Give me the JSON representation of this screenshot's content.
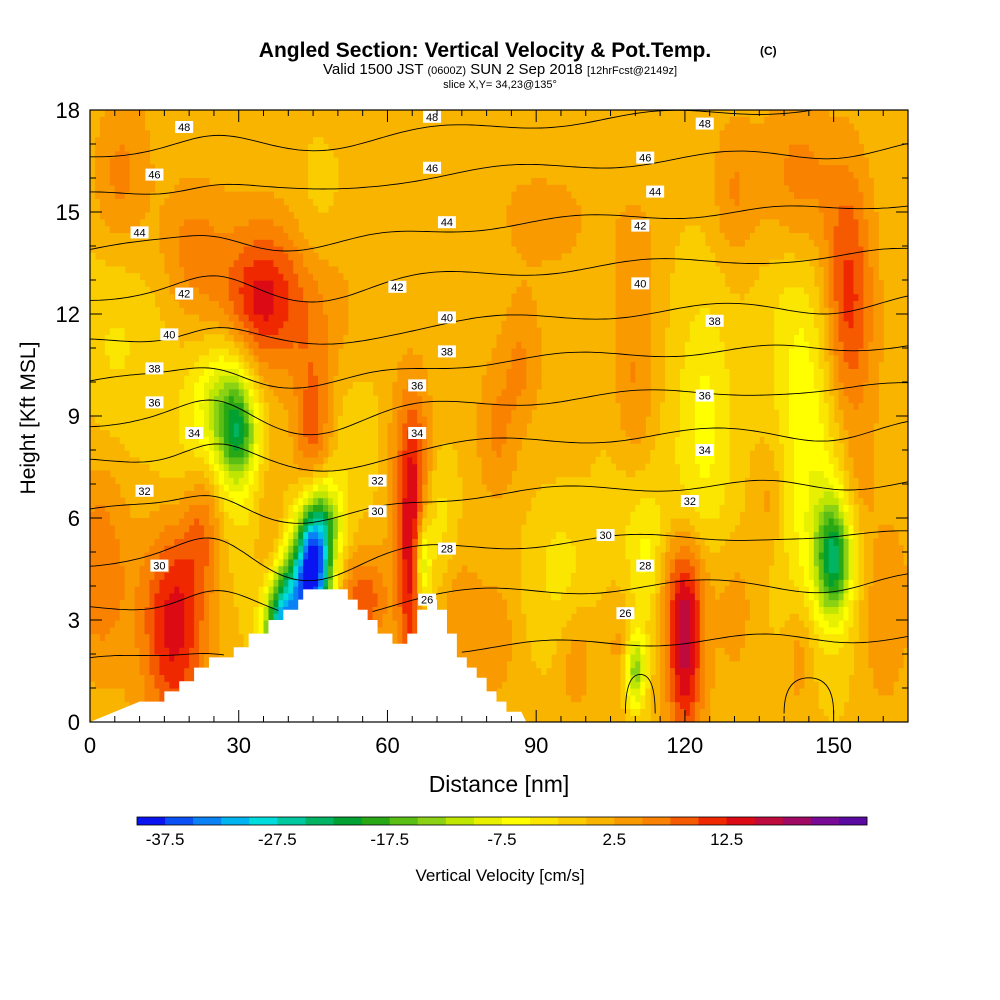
{
  "header": {
    "title_main": "Angled Section: Vertical Velocity & Pot.Temp.",
    "title_units": "(C)",
    "valid_prefix": "Valid 1500 JST",
    "valid_utc": "(0600Z)",
    "valid_date": "SUN 2 Sep 2018",
    "valid_fcst": "[12hrFcst@2149z]",
    "slice": "slice X,Y= 34,23@135°"
  },
  "colors": {
    "background": "#ffffff",
    "terrain": "#ffffff",
    "contour": "#000000",
    "base_fill": "#f9b400"
  },
  "chart_data": {
    "type": "heatmap",
    "xlabel": "Distance [nm]",
    "ylabel": "Height [Kft MSL]",
    "xlim": [
      0,
      165
    ],
    "ylim": [
      0,
      18
    ],
    "x_ticks": [
      0,
      30,
      60,
      90,
      120,
      150
    ],
    "y_ticks": [
      0,
      3,
      6,
      9,
      12,
      15,
      18
    ],
    "colorbar": {
      "label": "Vertical Velocity [cm/s]",
      "tick_labels": [
        "-37.5",
        "-27.5",
        "-17.5",
        "-7.5",
        "2.5",
        "12.5"
      ],
      "tick_values": [
        -37.5,
        -27.5,
        -17.5,
        -7.5,
        2.5,
        12.5
      ],
      "bins": [
        {
          "min": -40,
          "max": -37.5,
          "color": "#0a14f0"
        },
        {
          "min": -37.5,
          "max": -35,
          "color": "#0a50f5"
        },
        {
          "min": -35,
          "max": -32.5,
          "color": "#0a82f5"
        },
        {
          "min": -32.5,
          "max": -30,
          "color": "#00b4f0"
        },
        {
          "min": -30,
          "max": -27.5,
          "color": "#00dcdc"
        },
        {
          "min": -27.5,
          "max": -25,
          "color": "#00c8a0"
        },
        {
          "min": -25,
          "max": -22.5,
          "color": "#00b464"
        },
        {
          "min": -22.5,
          "max": -20,
          "color": "#00a032"
        },
        {
          "min": -20,
          "max": -17.5,
          "color": "#28a814"
        },
        {
          "min": -17.5,
          "max": -15,
          "color": "#5abe14"
        },
        {
          "min": -15,
          "max": -12.5,
          "color": "#8cd214"
        },
        {
          "min": -12.5,
          "max": -10,
          "color": "#bee600"
        },
        {
          "min": -10,
          "max": -7.5,
          "color": "#e6f000"
        },
        {
          "min": -7.5,
          "max": -5,
          "color": "#ffff00"
        },
        {
          "min": -5,
          "max": -2.5,
          "color": "#fae600"
        },
        {
          "min": -2.5,
          "max": 0,
          "color": "#f9cd00"
        },
        {
          "min": 0,
          "max": 2.5,
          "color": "#f9b400"
        },
        {
          "min": 2.5,
          "max": 5,
          "color": "#f99b00"
        },
        {
          "min": 5,
          "max": 7.5,
          "color": "#f98200"
        },
        {
          "min": 7.5,
          "max": 10,
          "color": "#f55a00"
        },
        {
          "min": 10,
          "max": 12.5,
          "color": "#f02800"
        },
        {
          "min": 12.5,
          "max": 15,
          "color": "#dc0a14"
        },
        {
          "min": 15,
          "max": 17.5,
          "color": "#be0a3c"
        },
        {
          "min": 17.5,
          "max": 20,
          "color": "#a00a64"
        },
        {
          "min": 20,
          "max": 22.5,
          "color": "#780a96"
        },
        {
          "min": 22.5,
          "max": 25,
          "color": "#5a0aa0"
        }
      ]
    },
    "field_features": [
      {
        "x": 37,
        "y": 12.6,
        "sx": 9,
        "sy": 1.6,
        "w": 10
      },
      {
        "x": 34,
        "y": 12.2,
        "sx": 3,
        "sy": 1.0,
        "w": 3
      },
      {
        "x": 6,
        "y": 16.0,
        "sx": 4,
        "sy": 1.6,
        "w": 5
      },
      {
        "x": 20,
        "y": 14.0,
        "sx": 4,
        "sy": 1.2,
        "w": 4
      },
      {
        "x": 2,
        "y": 4.5,
        "sx": 4,
        "sy": 2.0,
        "w": 6
      },
      {
        "x": 17,
        "y": 3.0,
        "sx": 4.5,
        "sy": 2.2,
        "w": 13
      },
      {
        "x": 23,
        "y": 6.0,
        "sx": 3,
        "sy": 1.5,
        "w": 9
      },
      {
        "x": 36,
        "y": 4.4,
        "sx": 2,
        "sy": 2.5,
        "w": 4
      },
      {
        "x": 45,
        "y": 8.5,
        "sx": 2.5,
        "sy": 1.6,
        "w": 8
      },
      {
        "x": 65,
        "y": 5.0,
        "sx": 2,
        "sy": 2.6,
        "w": 14
      },
      {
        "x": 64,
        "y": 8.0,
        "sx": 4.5,
        "sy": 1.8,
        "w": 5
      },
      {
        "x": 55,
        "y": 3.6,
        "sx": 3.5,
        "sy": 0.9,
        "w": 8
      },
      {
        "x": 75,
        "y": 3.0,
        "sx": 3,
        "sy": 1.4,
        "w": 4
      },
      {
        "x": 82,
        "y": 8.5,
        "sx": 3,
        "sy": 1.5,
        "w": 5
      },
      {
        "x": 82,
        "y": 2.5,
        "sx": 2.5,
        "sy": 1.2,
        "w": 4
      },
      {
        "x": 87,
        "y": 10.5,
        "sx": 2.5,
        "sy": 1.2,
        "w": 4
      },
      {
        "x": 98,
        "y": 1.8,
        "sx": 2.5,
        "sy": 1.2,
        "w": 4
      },
      {
        "x": 110,
        "y": 9.5,
        "sx": 3,
        "sy": 2.2,
        "w": 5
      },
      {
        "x": 110,
        "y": 13.5,
        "sx": 3,
        "sy": 1.4,
        "w": 3
      },
      {
        "x": 107,
        "y": 2.2,
        "sx": 2,
        "sy": 1.2,
        "w": 3
      },
      {
        "x": 120,
        "y": 2.0,
        "sx": 2.5,
        "sy": 1.8,
        "w": 14
      },
      {
        "x": 120,
        "y": 4.0,
        "sx": 3.5,
        "sy": 1.2,
        "w": 6
      },
      {
        "x": 130,
        "y": 15.5,
        "sx": 3,
        "sy": 1.4,
        "w": 4
      },
      {
        "x": 137,
        "y": 6.5,
        "sx": 2.5,
        "sy": 1.2,
        "w": 4
      },
      {
        "x": 143,
        "y": 2.0,
        "sx": 2,
        "sy": 1.2,
        "w": 4
      },
      {
        "x": 130,
        "y": 3.5,
        "sx": 3,
        "sy": 1.4,
        "w": 3
      },
      {
        "x": 153,
        "y": 12.5,
        "sx": 3.5,
        "sy": 2.8,
        "w": 10
      },
      {
        "x": 143,
        "y": 16.0,
        "sx": 5,
        "sy": 1.6,
        "w": 5
      },
      {
        "x": 160,
        "y": 3.0,
        "sx": 3.5,
        "sy": 2.0,
        "w": 4
      },
      {
        "x": 155,
        "y": 7.0,
        "sx": 2.5,
        "sy": 1.2,
        "w": 3
      },
      {
        "x": 95,
        "y": 15.0,
        "sx": 10,
        "sy": 1.5,
        "w": 2
      },
      {
        "x": 45,
        "y": 4.6,
        "sx": 2.6,
        "sy": 1.3,
        "w": -40
      },
      {
        "x": 40,
        "y": 3.5,
        "sx": 3,
        "sy": 1.0,
        "w": -22
      },
      {
        "x": 38,
        "y": 2.6,
        "sx": 2.5,
        "sy": 0.8,
        "w": -18
      },
      {
        "x": 48,
        "y": 6.0,
        "sx": 2.5,
        "sy": 0.9,
        "w": -10
      },
      {
        "x": 67,
        "y": 4.6,
        "sx": 1.2,
        "sy": 1.0,
        "w": -15
      },
      {
        "x": 30,
        "y": 8.5,
        "sx": 2.5,
        "sy": 1.0,
        "w": -14
      },
      {
        "x": 27,
        "y": 9.5,
        "sx": 4,
        "sy": 1.3,
        "w": -10
      },
      {
        "x": 25,
        "y": 7.5,
        "sx": 7,
        "sy": 2.0,
        "w": -6
      },
      {
        "x": 150,
        "y": 4.8,
        "sx": 2.5,
        "sy": 1.2,
        "w": -20
      },
      {
        "x": 147,
        "y": 6.0,
        "sx": 6,
        "sy": 2.5,
        "w": -6
      },
      {
        "x": 124,
        "y": 8.5,
        "sx": 4,
        "sy": 3.0,
        "w": -6
      },
      {
        "x": 145,
        "y": 10.0,
        "sx": 4,
        "sy": 2.5,
        "w": -5
      },
      {
        "x": 110,
        "y": 1.5,
        "sx": 1.5,
        "sy": 0.8,
        "w": -15
      },
      {
        "x": 112,
        "y": 4.5,
        "sx": 2.5,
        "sy": 1.5,
        "w": -5
      },
      {
        "x": 95,
        "y": 4.5,
        "sx": 4,
        "sy": 1.5,
        "w": -4
      },
      {
        "x": 55,
        "y": 8.0,
        "sx": 5,
        "sy": 1.5,
        "w": -4
      },
      {
        "x": 70,
        "y": 6.0,
        "sx": 2.5,
        "sy": 1.5,
        "w": -5
      },
      {
        "x": 45,
        "y": 14.0,
        "sx": 4,
        "sy": 1.5,
        "w": -3
      },
      {
        "x": 110,
        "y": 6.5,
        "sx": 6,
        "sy": 2.0,
        "w": -4
      },
      {
        "x": 5,
        "y": 11.0,
        "sx": 6,
        "sy": 2.0,
        "w": -3
      },
      {
        "x": 140,
        "y": 12.0,
        "sx": 5,
        "sy": 2.0,
        "w": -3
      }
    ],
    "terrain_profile": [
      {
        "x": 0,
        "top": 0
      },
      {
        "x": 10,
        "top": 0.6
      },
      {
        "x": 15,
        "top": 0.6
      },
      {
        "x": 15,
        "top": 0.9
      },
      {
        "x": 18,
        "top": 0.9
      },
      {
        "x": 18,
        "top": 1.2
      },
      {
        "x": 21,
        "top": 1.2
      },
      {
        "x": 21,
        "top": 1.6
      },
      {
        "x": 24,
        "top": 1.6
      },
      {
        "x": 24,
        "top": 1.9
      },
      {
        "x": 29,
        "top": 1.9
      },
      {
        "x": 29,
        "top": 2.2
      },
      {
        "x": 32,
        "top": 2.2
      },
      {
        "x": 32,
        "top": 2.6
      },
      {
        "x": 36,
        "top": 2.6
      },
      {
        "x": 36,
        "top": 3.0
      },
      {
        "x": 39,
        "top": 3.0
      },
      {
        "x": 39,
        "top": 3.3
      },
      {
        "x": 42,
        "top": 3.3
      },
      {
        "x": 42,
        "top": 3.6
      },
      {
        "x": 43,
        "top": 3.6
      },
      {
        "x": 43,
        "top": 3.9
      },
      {
        "x": 52,
        "top": 3.9
      },
      {
        "x": 52,
        "top": 3.6
      },
      {
        "x": 54,
        "top": 3.6
      },
      {
        "x": 54,
        "top": 3.3
      },
      {
        "x": 56,
        "top": 3.3
      },
      {
        "x": 56,
        "top": 3.0
      },
      {
        "x": 58,
        "top": 3.0
      },
      {
        "x": 58,
        "top": 2.6
      },
      {
        "x": 61,
        "top": 2.6
      },
      {
        "x": 61,
        "top": 2.3
      },
      {
        "x": 64,
        "top": 2.3
      },
      {
        "x": 64,
        "top": 2.6
      },
      {
        "x": 66,
        "top": 2.6
      },
      {
        "x": 66,
        "top": 3.3
      },
      {
        "x": 68,
        "top": 3.3
      },
      {
        "x": 68,
        "top": 3.6
      },
      {
        "x": 70,
        "top": 3.6
      },
      {
        "x": 70,
        "top": 3.3
      },
      {
        "x": 72,
        "top": 3.3
      },
      {
        "x": 72,
        "top": 2.6
      },
      {
        "x": 74,
        "top": 2.6
      },
      {
        "x": 74,
        "top": 1.9
      },
      {
        "x": 76,
        "top": 1.9
      },
      {
        "x": 76,
        "top": 1.6
      },
      {
        "x": 78,
        "top": 1.6
      },
      {
        "x": 78,
        "top": 1.3
      },
      {
        "x": 80,
        "top": 1.3
      },
      {
        "x": 80,
        "top": 0.9
      },
      {
        "x": 82,
        "top": 0.9
      },
      {
        "x": 82,
        "top": 0.6
      },
      {
        "x": 84,
        "top": 0.6
      },
      {
        "x": 84,
        "top": 0.3
      },
      {
        "x": 87,
        "top": 0.3
      },
      {
        "x": 88,
        "top": 0
      }
    ],
    "theta_contours": [
      {
        "level": 26,
        "base": 2.2,
        "scale": 0.55
      },
      {
        "level": 28,
        "base": 3.8,
        "scale": 0.85
      },
      {
        "level": 30,
        "base": 5.2,
        "scale": 1.0
      },
      {
        "level": 32,
        "base": 6.7,
        "scale": 1.0
      },
      {
        "level": 34,
        "base": 8.2,
        "scale": 0.9
      },
      {
        "level": 36,
        "base": 9.4,
        "scale": 0.8
      },
      {
        "level": 38,
        "base": 10.6,
        "scale": 0.75
      },
      {
        "level": 40,
        "base": 11.8,
        "scale": 0.7
      },
      {
        "level": 42,
        "base": 13.2,
        "scale": 0.6
      },
      {
        "level": 44,
        "base": 14.6,
        "scale": 0.55
      },
      {
        "level": 46,
        "base": 16.2,
        "scale": 0.45
      },
      {
        "level": 48,
        "base": 17.5,
        "scale": 0.35
      }
    ],
    "theta_labels": [
      {
        "text": "48",
        "x": 19,
        "y": 17.5
      },
      {
        "text": "48",
        "x": 69,
        "y": 17.8
      },
      {
        "text": "48",
        "x": 124,
        "y": 17.6
      },
      {
        "text": "46",
        "x": 13,
        "y": 16.1
      },
      {
        "text": "46",
        "x": 69,
        "y": 16.3
      },
      {
        "text": "46",
        "x": 112,
        "y": 16.6
      },
      {
        "text": "44",
        "x": 10,
        "y": 14.4
      },
      {
        "text": "44",
        "x": 72,
        "y": 14.7
      },
      {
        "text": "44",
        "x": 114,
        "y": 15.6
      },
      {
        "text": "42",
        "x": 19,
        "y": 12.6
      },
      {
        "text": "42",
        "x": 62,
        "y": 12.8
      },
      {
        "text": "42",
        "x": 111,
        "y": 14.6
      },
      {
        "text": "40",
        "x": 16,
        "y": 11.4
      },
      {
        "text": "40",
        "x": 72,
        "y": 11.9
      },
      {
        "text": "40",
        "x": 111,
        "y": 12.9
      },
      {
        "text": "38",
        "x": 13,
        "y": 10.4
      },
      {
        "text": "38",
        "x": 72,
        "y": 10.9
      },
      {
        "text": "38",
        "x": 126,
        "y": 11.8
      },
      {
        "text": "36",
        "x": 13,
        "y": 9.4
      },
      {
        "text": "36",
        "x": 66,
        "y": 9.9
      },
      {
        "text": "36",
        "x": 124,
        "y": 9.6
      },
      {
        "text": "34",
        "x": 21,
        "y": 8.5
      },
      {
        "text": "34",
        "x": 66,
        "y": 8.5
      },
      {
        "text": "34",
        "x": 124,
        "y": 8.0
      },
      {
        "text": "32",
        "x": 11,
        "y": 6.8
      },
      {
        "text": "32",
        "x": 58,
        "y": 7.1
      },
      {
        "text": "32",
        "x": 121,
        "y": 6.5
      },
      {
        "text": "30",
        "x": 14,
        "y": 4.6
      },
      {
        "text": "30",
        "x": 58,
        "y": 6.2
      },
      {
        "text": "30",
        "x": 104,
        "y": 5.5
      },
      {
        "text": "28",
        "x": 72,
        "y": 5.1
      },
      {
        "text": "28",
        "x": 112,
        "y": 4.6
      },
      {
        "text": "26",
        "x": 68,
        "y": 3.6
      },
      {
        "text": "26",
        "x": 108,
        "y": 3.2
      }
    ],
    "theta_closed": [
      {
        "cx": 111,
        "cy": 0.6,
        "rx": 3,
        "ry": 0.8
      },
      {
        "cx": 145,
        "cy": 0.6,
        "rx": 5,
        "ry": 0.7
      }
    ]
  }
}
